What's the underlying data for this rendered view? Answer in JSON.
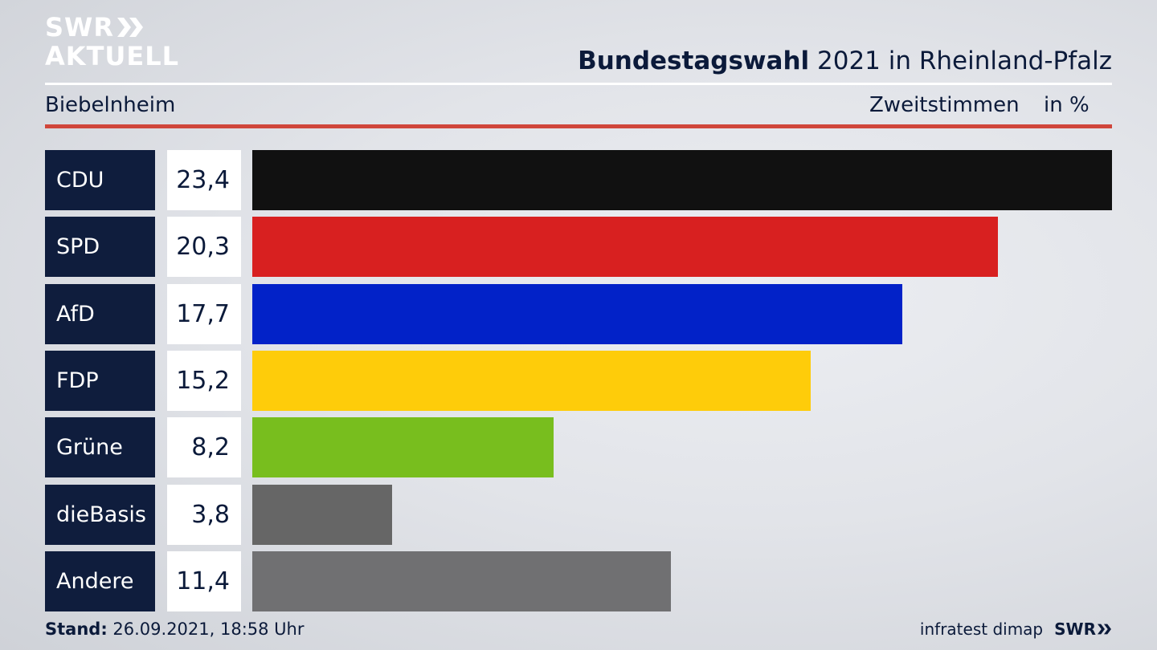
{
  "brand": {
    "line1": "SWR",
    "line2": "AKTUELL",
    "footer_logo": "SWR"
  },
  "header": {
    "title_bold": "Bundestagswahl",
    "title_rest": " 2021 in Rheinland-Pfalz",
    "region": "Biebelnheim",
    "vote_type": "Zweitstimmen",
    "unit": "in %"
  },
  "chart_data": {
    "type": "bar",
    "orientation": "horizontal",
    "title": "Bundestagswahl 2021 in Rheinland-Pfalz",
    "subtitle": "Biebelnheim",
    "xlabel": "Zweitstimmen",
    "ylabel": "",
    "unit": "in %",
    "xlim": [
      0,
      23.4
    ],
    "categories": [
      "CDU",
      "SPD",
      "AfD",
      "FDP",
      "Grüne",
      "dieBasis",
      "Andere"
    ],
    "values": [
      23.4,
      20.3,
      17.7,
      15.2,
      8.2,
      3.8,
      11.4
    ],
    "value_labels": [
      "23,4",
      "20,3",
      "17,7",
      "15,2",
      "8,2",
      "3,8",
      "11,4"
    ],
    "colors": [
      "#111111",
      "#d82020",
      "#0222c8",
      "#fecc0a",
      "#78be1e",
      "#666666",
      "#707072"
    ]
  },
  "footer": {
    "stand_label": "Stand:",
    "stand_value": " 26.09.2021, 18:58 Uhr",
    "source": "infratest dimap"
  }
}
